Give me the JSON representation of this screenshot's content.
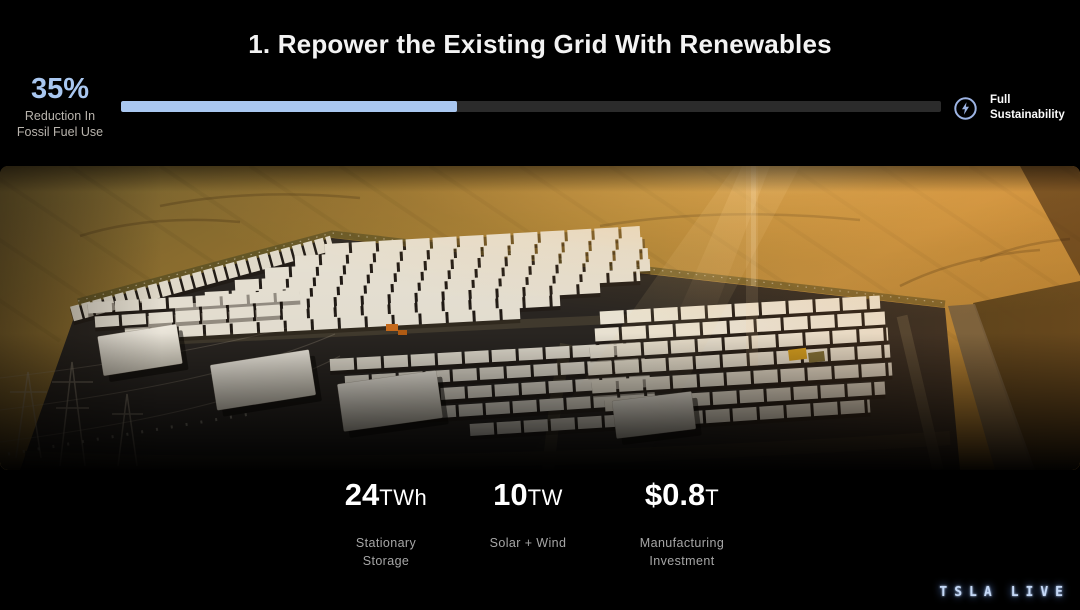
{
  "header": {
    "title": "1. Repower the Existing Grid With Renewables",
    "metric": {
      "value": "35%",
      "caption_line1": "Reduction In",
      "caption_line2": "Fossil Fuel Use"
    },
    "progress": {
      "percent_fill": 41,
      "fill_color": "#a9c7f0",
      "track_color": "#2b2b2b"
    },
    "goal": {
      "icon": "lightning-circle-icon",
      "label_line1": "Full",
      "label_line2": "Sustainability"
    }
  },
  "photo": {
    "alt": "Aerial view of a Tesla Megapack battery storage facility surrounded by golden wheat fields at sunset"
  },
  "stats": [
    {
      "value": "24",
      "unit": "TWh",
      "label_line1": "Stationary",
      "label_line2": "Storage"
    },
    {
      "value": "10",
      "unit": "TW",
      "label_line1": "Solar + Wind",
      "label_line2": ""
    },
    {
      "value": "$0.8",
      "unit": "T",
      "label_line1": "Manufacturing",
      "label_line2": "Investment"
    }
  ],
  "watermark": {
    "part1": "TSLA",
    "part2": "LIVE"
  }
}
